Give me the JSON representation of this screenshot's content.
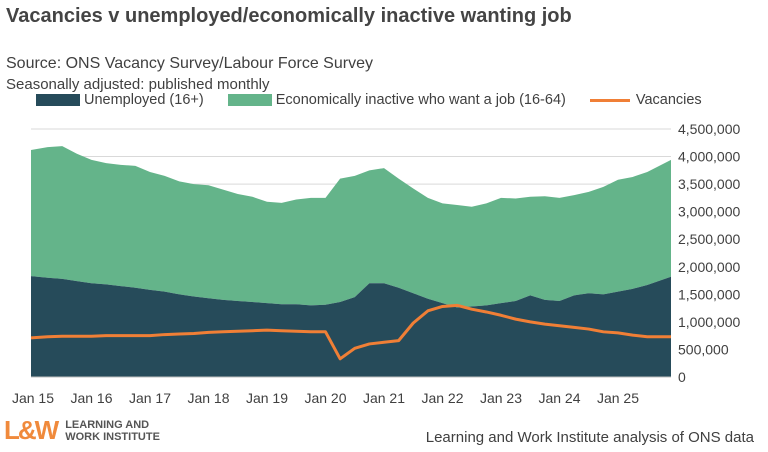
{
  "chart_data": {
    "type": "area",
    "title": "Vacancies v unemployed/economically inactive wanting job",
    "subtitle": "Source: ONS Vacancy Survey/Labour Force Survey",
    "note": "Seasonally adjusted: published monthly",
    "colors": {
      "unemployed": "#264b5a",
      "inactive": "#64b48a",
      "vacancies": "#f07f36",
      "grid": "#d9d9d9"
    },
    "x_tick_labels": [
      "Jan 15",
      "Jan 16",
      "Jan 17",
      "Jan 18",
      "Jan 19",
      "Jan 20",
      "Jan 21",
      "Jan 22",
      "Jan 23",
      "Jan 24",
      "Jan 25"
    ],
    "y_tick_labels": [
      "0",
      "500,000",
      "1,000,000",
      "1,500,000",
      "2,000,000",
      "2,500,000",
      "3,000,000",
      "3,500,000",
      "4,000,000",
      "4,500,000"
    ],
    "ylim": [
      0,
      4500000
    ],
    "grid": true,
    "legend_placement": "top",
    "x_start": "Jan 15",
    "x_step": "quarter",
    "series": [
      {
        "name": "Unemployed (16+)",
        "kind": "stacked-area",
        "unit": "millions",
        "values": [
          1.83,
          1.8,
          1.78,
          1.74,
          1.7,
          1.68,
          1.65,
          1.62,
          1.58,
          1.55,
          1.5,
          1.46,
          1.43,
          1.4,
          1.38,
          1.36,
          1.34,
          1.32,
          1.32,
          1.3,
          1.31,
          1.36,
          1.45,
          1.7,
          1.7,
          1.62,
          1.52,
          1.42,
          1.34,
          1.26,
          1.28,
          1.3,
          1.34,
          1.38,
          1.48,
          1.4,
          1.38,
          1.48,
          1.52,
          1.5,
          1.55,
          1.6,
          1.67,
          1.82
        ]
      },
      {
        "name": "Economically inactive who want a job (16-64)",
        "kind": "stacked-area",
        "unit": "millions",
        "values": [
          2.29,
          2.37,
          2.41,
          2.31,
          2.24,
          2.2,
          2.2,
          2.21,
          2.14,
          2.1,
          2.05,
          2.04,
          2.05,
          2.0,
          1.94,
          1.91,
          1.84,
          1.84,
          1.9,
          1.95,
          1.94,
          2.24,
          2.2,
          2.05,
          2.09,
          1.98,
          1.9,
          1.83,
          1.81,
          1.86,
          1.81,
          1.85,
          1.91,
          1.86,
          1.79,
          1.88,
          1.87,
          1.82,
          1.84,
          1.95,
          2.03,
          2.03,
          2.05,
          2.12
        ]
      },
      {
        "name": "Vacancies",
        "kind": "line",
        "unit": "millions",
        "values": [
          0.71,
          0.73,
          0.74,
          0.74,
          0.74,
          0.75,
          0.75,
          0.75,
          0.75,
          0.77,
          0.78,
          0.79,
          0.81,
          0.82,
          0.83,
          0.84,
          0.85,
          0.84,
          0.83,
          0.82,
          0.82,
          0.33,
          0.52,
          0.6,
          0.63,
          0.66,
          0.98,
          1.2,
          1.28,
          1.3,
          1.23,
          1.18,
          1.12,
          1.05,
          1.0,
          0.96,
          0.93,
          0.9,
          0.87,
          0.82,
          0.8,
          0.76,
          0.73,
          0.73
        ]
      }
    ]
  },
  "logo": {
    "mark": "L&W",
    "line1": "LEARNING AND",
    "line2": "WORK INSTITUTE"
  },
  "footer": "Learning and Work Institute analysis of ONS data"
}
